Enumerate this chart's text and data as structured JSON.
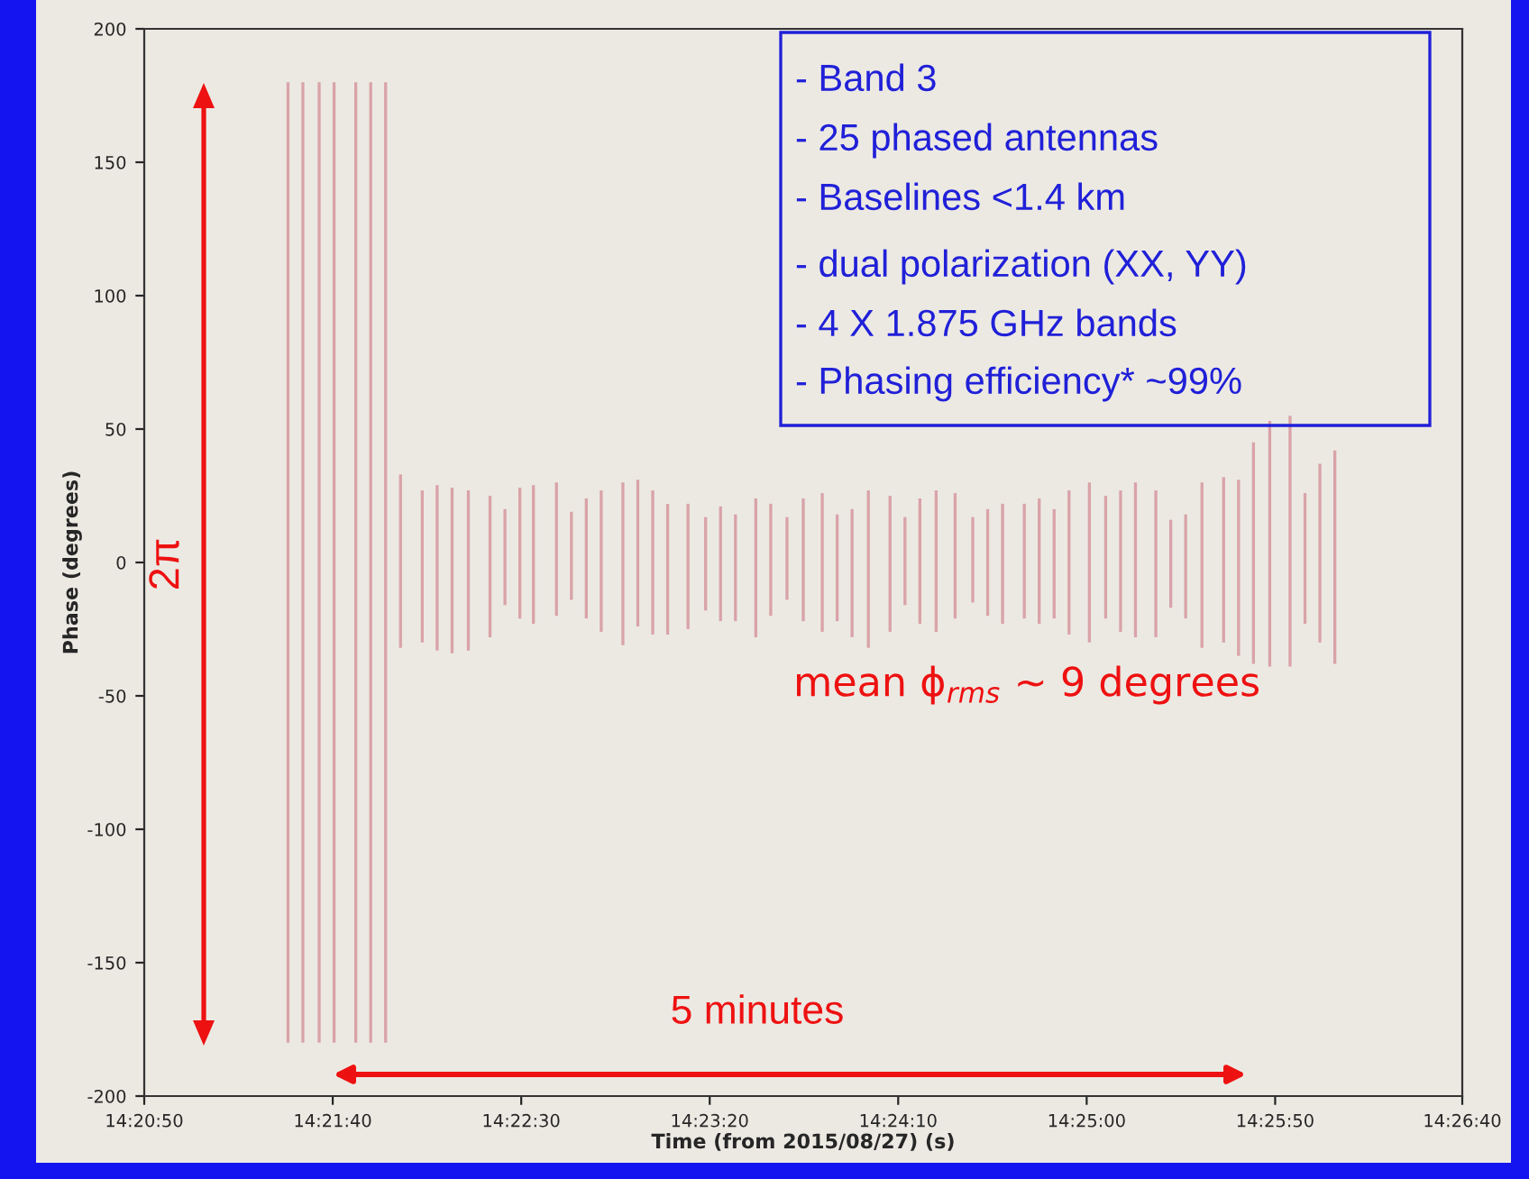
{
  "chart_data": {
    "type": "bar",
    "xlabel": "Time (from 2015/08/27) (s)",
    "ylabel": "Phase (degrees)",
    "x": [
      14.3578,
      14.3589,
      14.3601,
      14.3612,
      14.3628,
      14.3639,
      14.365,
      14.3661,
      14.3677,
      14.3688,
      14.3699,
      14.3711,
      14.3727,
      14.3738,
      14.3749,
      14.3759,
      14.3776,
      14.3787,
      14.3798,
      14.3809,
      14.3825,
      14.3836,
      14.3847,
      14.3858,
      14.3873,
      14.3886,
      14.3897,
      14.3908,
      14.3923,
      14.3934,
      14.3946,
      14.3958,
      14.3972,
      14.3983,
      14.3994,
      14.4006,
      14.4022,
      14.4033,
      14.4044,
      14.4056,
      14.407,
      14.4083,
      14.4094,
      14.4105,
      14.4121,
      14.4132,
      14.4143,
      14.4154,
      14.4169,
      14.4181,
      14.4192,
      14.4203,
      14.4218,
      14.4229,
      14.424,
      14.4252,
      14.4268,
      14.4279,
      14.429,
      14.4302,
      14.4317,
      14.4328,
      14.4339,
      14.435
    ],
    "base": [
      -180,
      -180,
      -180,
      -180,
      -180,
      -180,
      -180,
      -32,
      -30,
      -33,
      -34,
      -33,
      -28,
      -16,
      -21,
      -23,
      -20,
      -14,
      -21,
      -26,
      -31,
      -24,
      -27,
      -27,
      -25,
      -18,
      -22,
      -22,
      -28,
      -20,
      -14,
      -22,
      -26,
      -22,
      -28,
      -32,
      -26,
      -16,
      -23,
      -26,
      -21,
      -15,
      -20,
      -23,
      -21,
      -23,
      -21,
      -27,
      -30,
      -21,
      -26,
      -28,
      -28,
      -17,
      -21,
      -32,
      -30,
      -35,
      -38,
      -39,
      -39,
      -23,
      -30,
      -38
    ],
    "values": [
      360,
      360,
      360,
      360,
      360,
      360,
      360,
      65,
      57,
      62,
      62,
      60,
      53,
      36,
      49,
      52,
      50,
      33,
      45,
      53,
      61,
      55,
      54,
      49,
      47,
      35,
      43,
      40,
      52,
      42,
      31,
      46,
      52,
      40,
      48,
      59,
      51,
      33,
      47,
      53,
      47,
      32,
      40,
      45,
      43,
      47,
      41,
      54,
      60,
      46,
      53,
      58,
      55,
      33,
      39,
      62,
      62,
      66,
      83,
      92,
      94,
      49,
      67,
      80
    ],
    "color": "#d9a3a8",
    "xlim": [
      14.3472,
      14.4444
    ],
    "xticks": [
      {
        "value": 14.3472,
        "label": "14:20:50"
      },
      {
        "value": 14.3611,
        "label": "14:21:40"
      },
      {
        "value": 14.375,
        "label": "14:22:30"
      },
      {
        "value": 14.3889,
        "label": "14:23:20"
      },
      {
        "value": 14.4028,
        "label": "14:24:10"
      },
      {
        "value": 14.4167,
        "label": "14:25:00"
      },
      {
        "value": 14.4306,
        "label": "14:25:50"
      },
      {
        "value": 14.4444,
        "label": "14:26:40"
      }
    ],
    "ylim": [
      -200,
      200
    ],
    "yticks": [
      -200,
      -150,
      -100,
      -50,
      0,
      50,
      100,
      150,
      200
    ],
    "grid": false,
    "annotations": [
      "- Band 3",
      "- 25 phased antennas",
      "- Baselines <1.4 km",
      "- dual polarization (XX, YY)",
      "- 4 X 1.875 GHz bands",
      "- Phasing efficiency* ~99%",
      "2π",
      "5 minutes",
      "mean ϕ$_{rms}$ ~ 9 degrees"
    ]
  }
}
